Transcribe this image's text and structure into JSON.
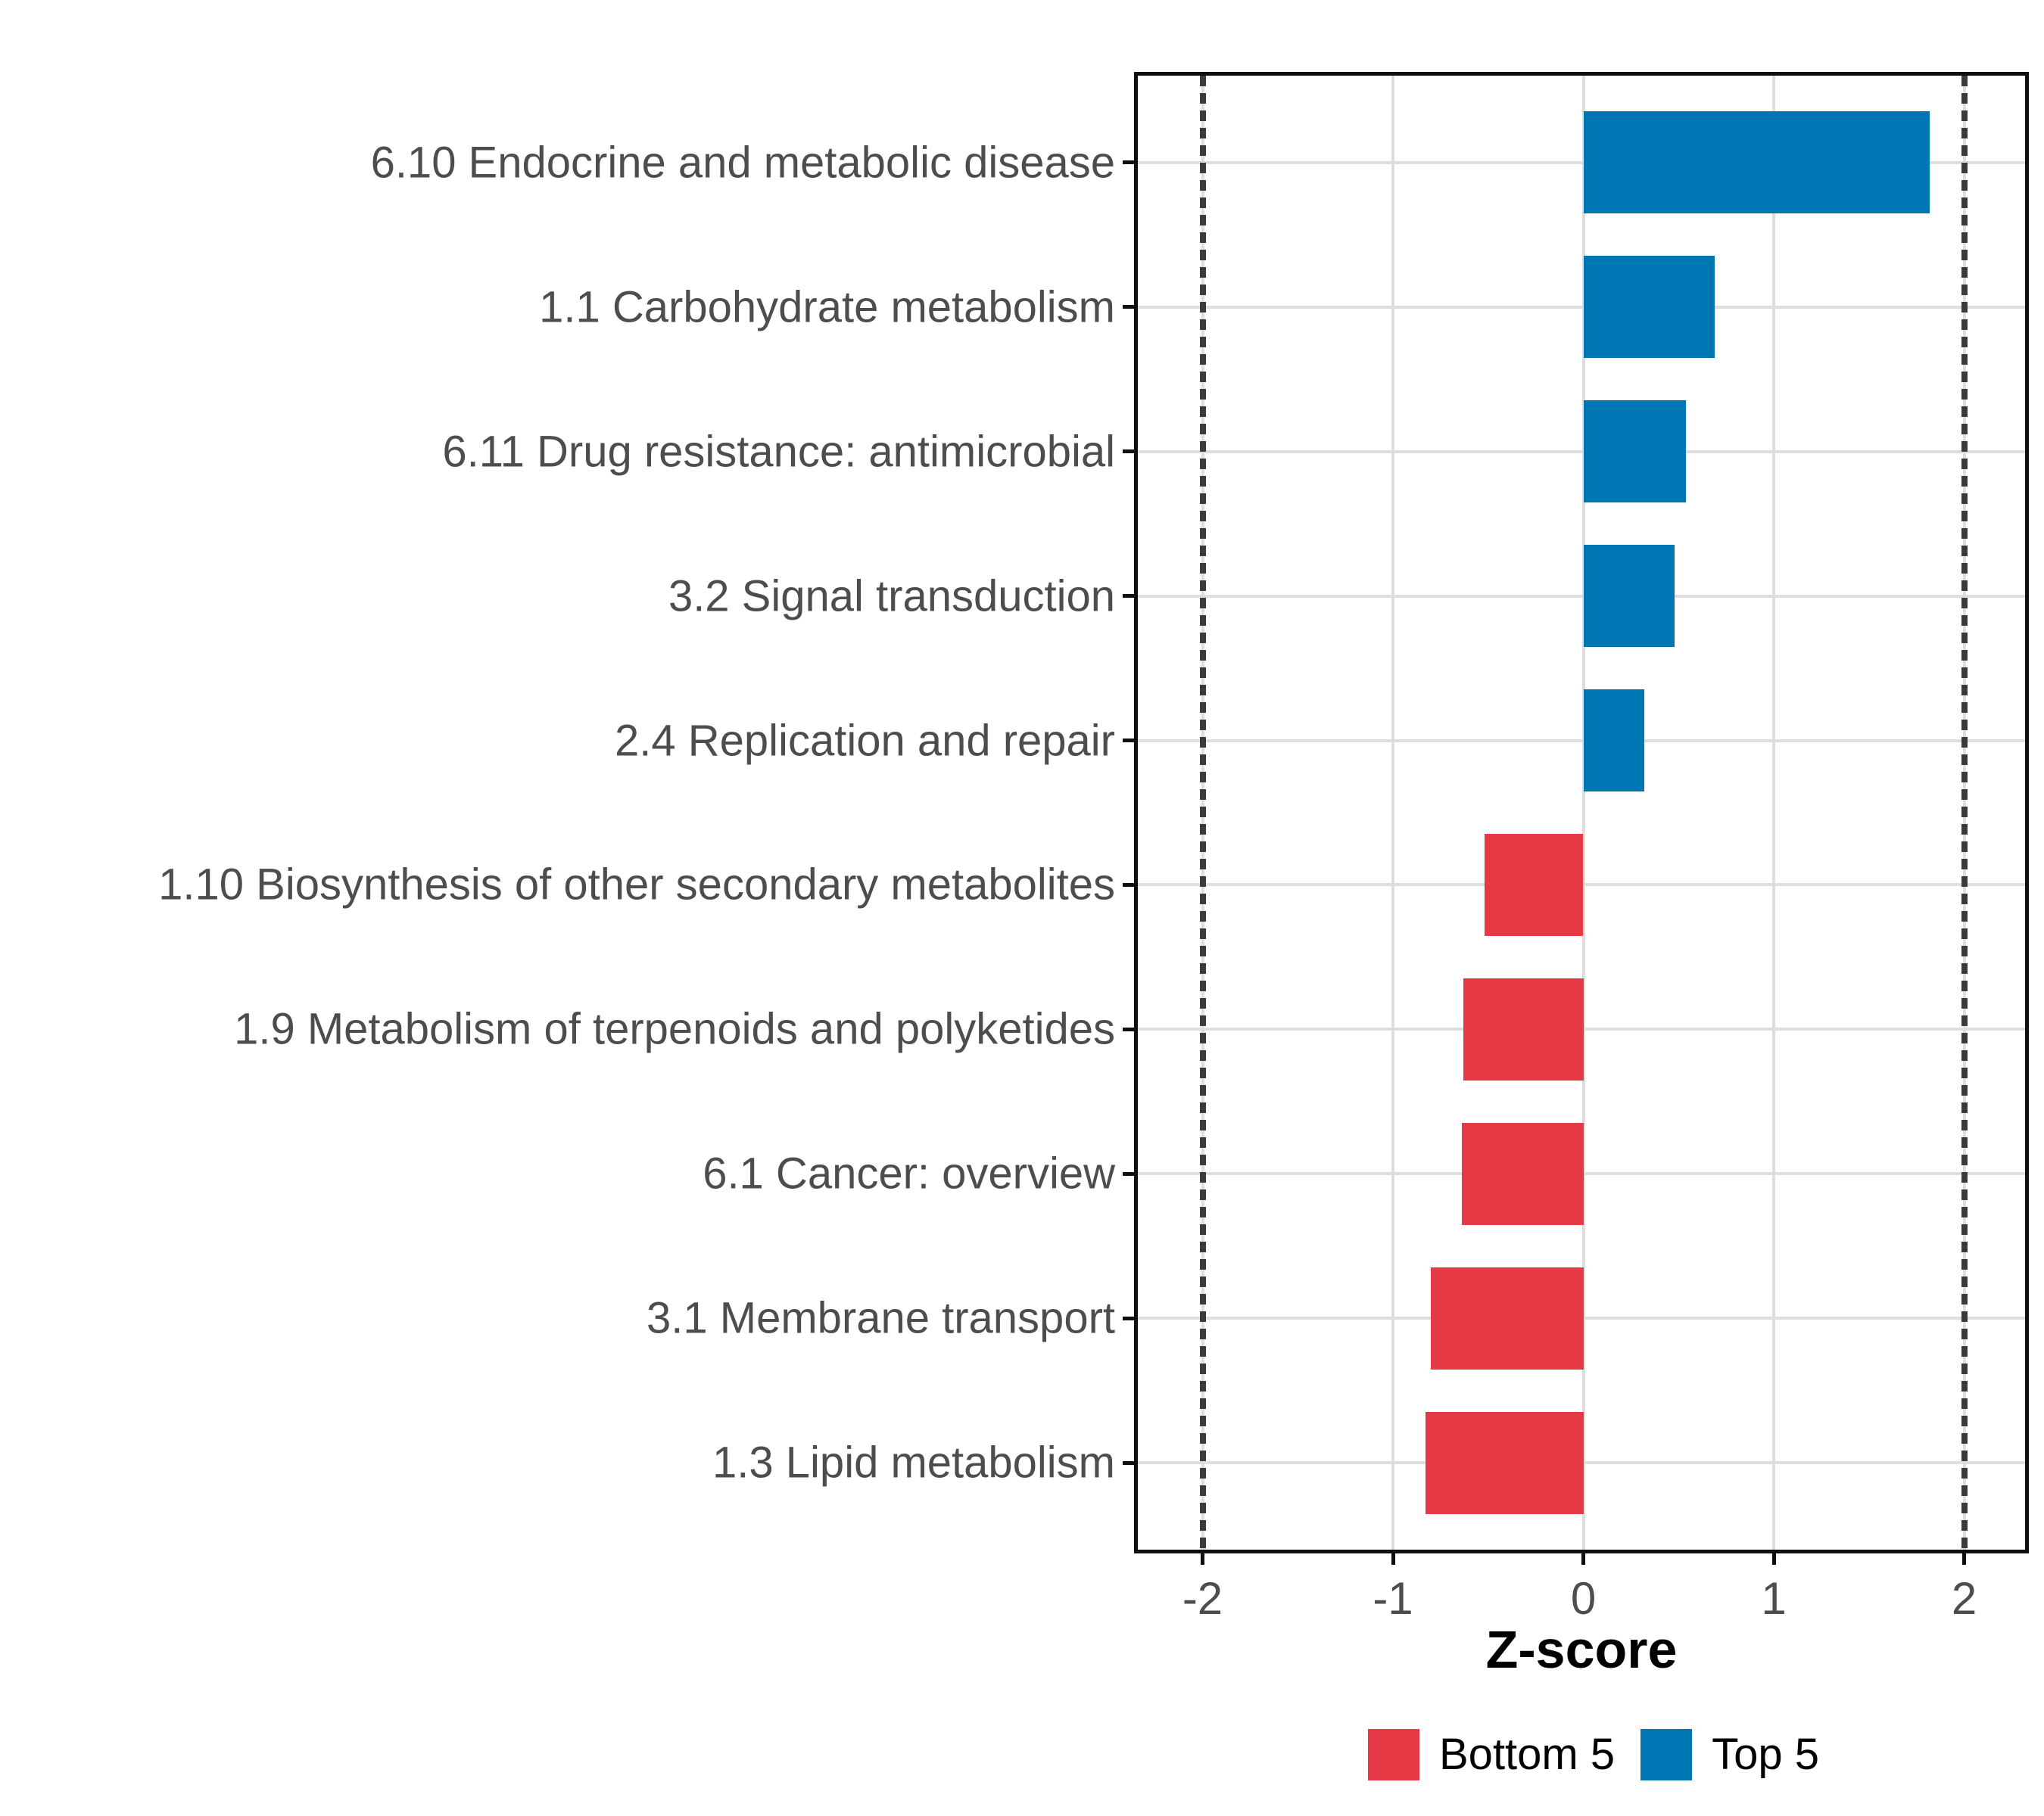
{
  "chart_data": {
    "type": "bar",
    "orientation": "horizontal",
    "xlabel": "Z-score",
    "x_axis": {
      "ticks": [
        -2,
        -1,
        0,
        1,
        2
      ],
      "tick_labels": [
        "-2",
        "-1",
        "0",
        "1",
        "2"
      ],
      "range": [
        -2.34,
        2.32
      ]
    },
    "reference_lines": [
      -2,
      2
    ],
    "bars": [
      {
        "label": "6.10 Endocrine and metabolic disease",
        "value": 1.82,
        "group": "Top 5"
      },
      {
        "label": "1.1 Carbohydrate metabolism",
        "value": 0.69,
        "group": "Top 5"
      },
      {
        "label": "6.11 Drug resistance: antimicrobial",
        "value": 0.54,
        "group": "Top 5"
      },
      {
        "label": "3.2 Signal transduction",
        "value": 0.48,
        "group": "Top 5"
      },
      {
        "label": "2.4 Replication and repair",
        "value": 0.32,
        "group": "Top 5"
      },
      {
        "label": "1.10 Biosynthesis of other secondary metabolites",
        "value": -0.52,
        "group": "Bottom 5"
      },
      {
        "label": "1.9 Metabolism of terpenoids and polyketides",
        "value": -0.63,
        "group": "Bottom 5"
      },
      {
        "label": "6.1 Cancer: overview",
        "value": -0.64,
        "group": "Bottom 5"
      },
      {
        "label": "3.1 Membrane transport",
        "value": -0.8,
        "group": "Bottom 5"
      },
      {
        "label": "1.3 Lipid metabolism",
        "value": -0.83,
        "group": "Bottom 5"
      }
    ],
    "colors": {
      "Top 5": "#0076b4",
      "Bottom 5": "#e63946"
    },
    "legend": [
      {
        "label": "Bottom 5",
        "color": "#e63946"
      },
      {
        "label": "Top 5",
        "color": "#0076b4"
      }
    ],
    "grid": {
      "major_color": "#dedede",
      "reference_line_color": "#3b3b3b"
    },
    "axis_text_color": "#4d4d4d"
  }
}
